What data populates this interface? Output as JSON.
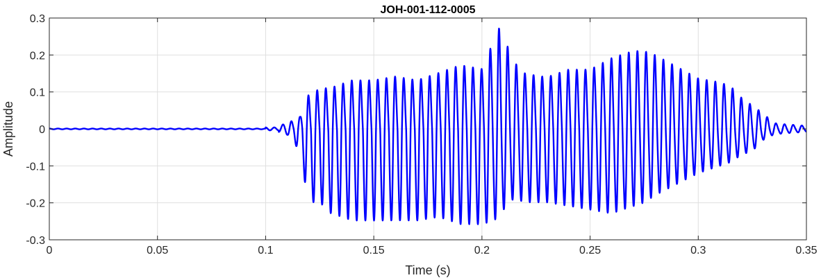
{
  "chart_data": {
    "type": "line",
    "title": "JOH-001-112-0005",
    "xlabel": "Time (s)",
    "ylabel": "Amplitude",
    "xlim": [
      0,
      0.35
    ],
    "ylim": [
      -0.3,
      0.3
    ],
    "xticks": [
      0,
      0.05,
      0.1,
      0.15,
      0.2,
      0.25,
      0.3,
      0.35
    ],
    "xtick_labels": [
      "0",
      "0.05",
      "0.1",
      "0.15",
      "0.2",
      "0.25",
      "0.3",
      "0.35"
    ],
    "yticks": [
      -0.3,
      -0.2,
      -0.1,
      0,
      0.1,
      0.2,
      0.3
    ],
    "ytick_labels": [
      "-0.3",
      "-0.2",
      "-0.1",
      "0",
      "0.1",
      "0.2",
      "0.3"
    ],
    "grid": true,
    "line_color": "#0000ff",
    "series": [
      {
        "x": [
          0,
          0.02,
          0.04,
          0.06,
          0.08,
          0.1,
          0.1,
          0.106,
          0.106,
          0.112,
          0.116,
          0.118,
          0.12,
          0.125,
          0.13,
          0.14,
          0.15,
          0.16,
          0.17,
          0.18,
          0.19,
          0.2,
          0.205,
          0.208,
          0.212,
          0.215,
          0.22,
          0.23,
          0.24,
          0.25,
          0.26,
          0.27,
          0.275,
          0.28,
          0.29,
          0.3,
          0.31,
          0.315,
          0.32,
          0.325,
          0.33,
          0.335,
          0.34,
          0.345,
          0.35
        ],
        "upper": [
          0.001,
          0.001,
          0.001,
          0.001,
          0.001,
          0.001,
          0.004,
          0.004,
          0.008,
          0.02,
          0.03,
          0.1,
          0.08,
          0.1,
          0.1,
          0.12,
          0.12,
          0.13,
          0.12,
          0.14,
          0.16,
          0.15,
          0.22,
          0.26,
          0.21,
          0.17,
          0.14,
          0.13,
          0.15,
          0.15,
          0.18,
          0.2,
          0.2,
          0.19,
          0.16,
          0.13,
          0.12,
          0.11,
          0.08,
          0.06,
          0.04,
          0.015,
          0.012,
          0.01,
          0.008
        ],
        "lower": [
          -0.001,
          -0.001,
          -0.001,
          -0.001,
          -0.001,
          -0.001,
          -0.004,
          -0.004,
          -0.008,
          -0.02,
          -0.07,
          -0.14,
          -0.2,
          -0.2,
          -0.23,
          -0.25,
          -0.25,
          -0.25,
          -0.25,
          -0.24,
          -0.26,
          -0.26,
          -0.25,
          -0.24,
          -0.2,
          -0.19,
          -0.2,
          -0.2,
          -0.21,
          -0.22,
          -0.23,
          -0.21,
          -0.2,
          -0.18,
          -0.15,
          -0.12,
          -0.1,
          -0.09,
          -0.07,
          -0.06,
          -0.03,
          -0.015,
          -0.012,
          -0.01,
          -0.008
        ],
        "period": 0.004
      }
    ]
  }
}
